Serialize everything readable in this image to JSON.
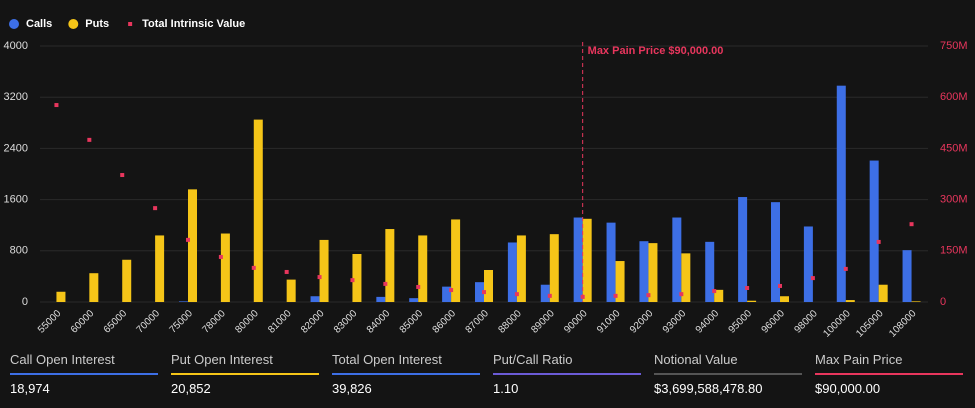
{
  "chart_data": {
    "type": "bar",
    "categories": [
      "55000",
      "60000",
      "65000",
      "70000",
      "75000",
      "78000",
      "80000",
      "81000",
      "82000",
      "83000",
      "84000",
      "85000",
      "86000",
      "87000",
      "88000",
      "89000",
      "90000",
      "91000",
      "92000",
      "93000",
      "94000",
      "95000",
      "96000",
      "98000",
      "100000",
      "105000",
      "108000"
    ],
    "series": [
      {
        "name": "Calls",
        "color": "#3d6fe6",
        "type": "bar",
        "values": [
          0,
          0,
          0,
          0,
          10,
          0,
          0,
          0,
          90,
          0,
          80,
          60,
          240,
          310,
          930,
          270,
          1320,
          1240,
          950,
          1320,
          940,
          1640,
          1560,
          1180,
          3380,
          2210,
          810
        ]
      },
      {
        "name": "Puts",
        "color": "#f5c518",
        "type": "bar",
        "values": [
          160,
          450,
          660,
          1040,
          1760,
          1070,
          2850,
          350,
          970,
          750,
          1140,
          1040,
          1290,
          500,
          1040,
          1060,
          1300,
          640,
          920,
          760,
          190,
          20,
          90,
          0,
          30,
          270,
          10
        ]
      },
      {
        "name": "Total Intrinsic Value",
        "color": "#e8365d",
        "type": "scatter",
        "axis": "y2",
        "values": [
          577000000,
          475000000,
          372000000,
          275000000,
          182000000,
          132000000,
          100000000,
          88000000,
          73000000,
          64000000,
          53000000,
          44000000,
          35000000,
          29000000,
          23000000,
          18000000,
          15000000,
          18000000,
          20000000,
          23000000,
          32000000,
          41000000,
          47000000,
          70000000,
          97000000,
          176000000,
          228000000
        ]
      }
    ],
    "ylim": [
      0,
      4000
    ],
    "yticks": [
      0,
      800,
      1600,
      2400,
      3200,
      4000
    ],
    "y2lim": [
      0,
      750000000
    ],
    "y2ticks": [
      {
        "value": 0,
        "label": "0"
      },
      {
        "value": 150000000,
        "label": "150M"
      },
      {
        "value": 300000000,
        "label": "300M"
      },
      {
        "value": 450000000,
        "label": "450M"
      },
      {
        "value": 600000000,
        "label": "600M"
      },
      {
        "value": 750000000,
        "label": "750M"
      }
    ],
    "grid": true,
    "legend": "top-left",
    "annotation": {
      "text": "Max Pain Price $90,000.00",
      "x": "90000",
      "color": "#e8365d"
    }
  },
  "footer": [
    {
      "label": "Call Open Interest",
      "value": "18,974",
      "color": "#3d6fe6"
    },
    {
      "label": "Put Open Interest",
      "value": "20,852",
      "color": "#f5c518"
    },
    {
      "label": "Total Open Interest",
      "value": "39,826",
      "color": "#3d6fe6"
    },
    {
      "label": "Put/Call Ratio",
      "value": "1.10",
      "color": "#6b5bd6"
    },
    {
      "label": "Notional Value",
      "value": "$3,699,588,478.80",
      "color": "#555555"
    },
    {
      "label": "Max Pain Price",
      "value": "$90,000.00",
      "color": "#e8365d"
    }
  ]
}
